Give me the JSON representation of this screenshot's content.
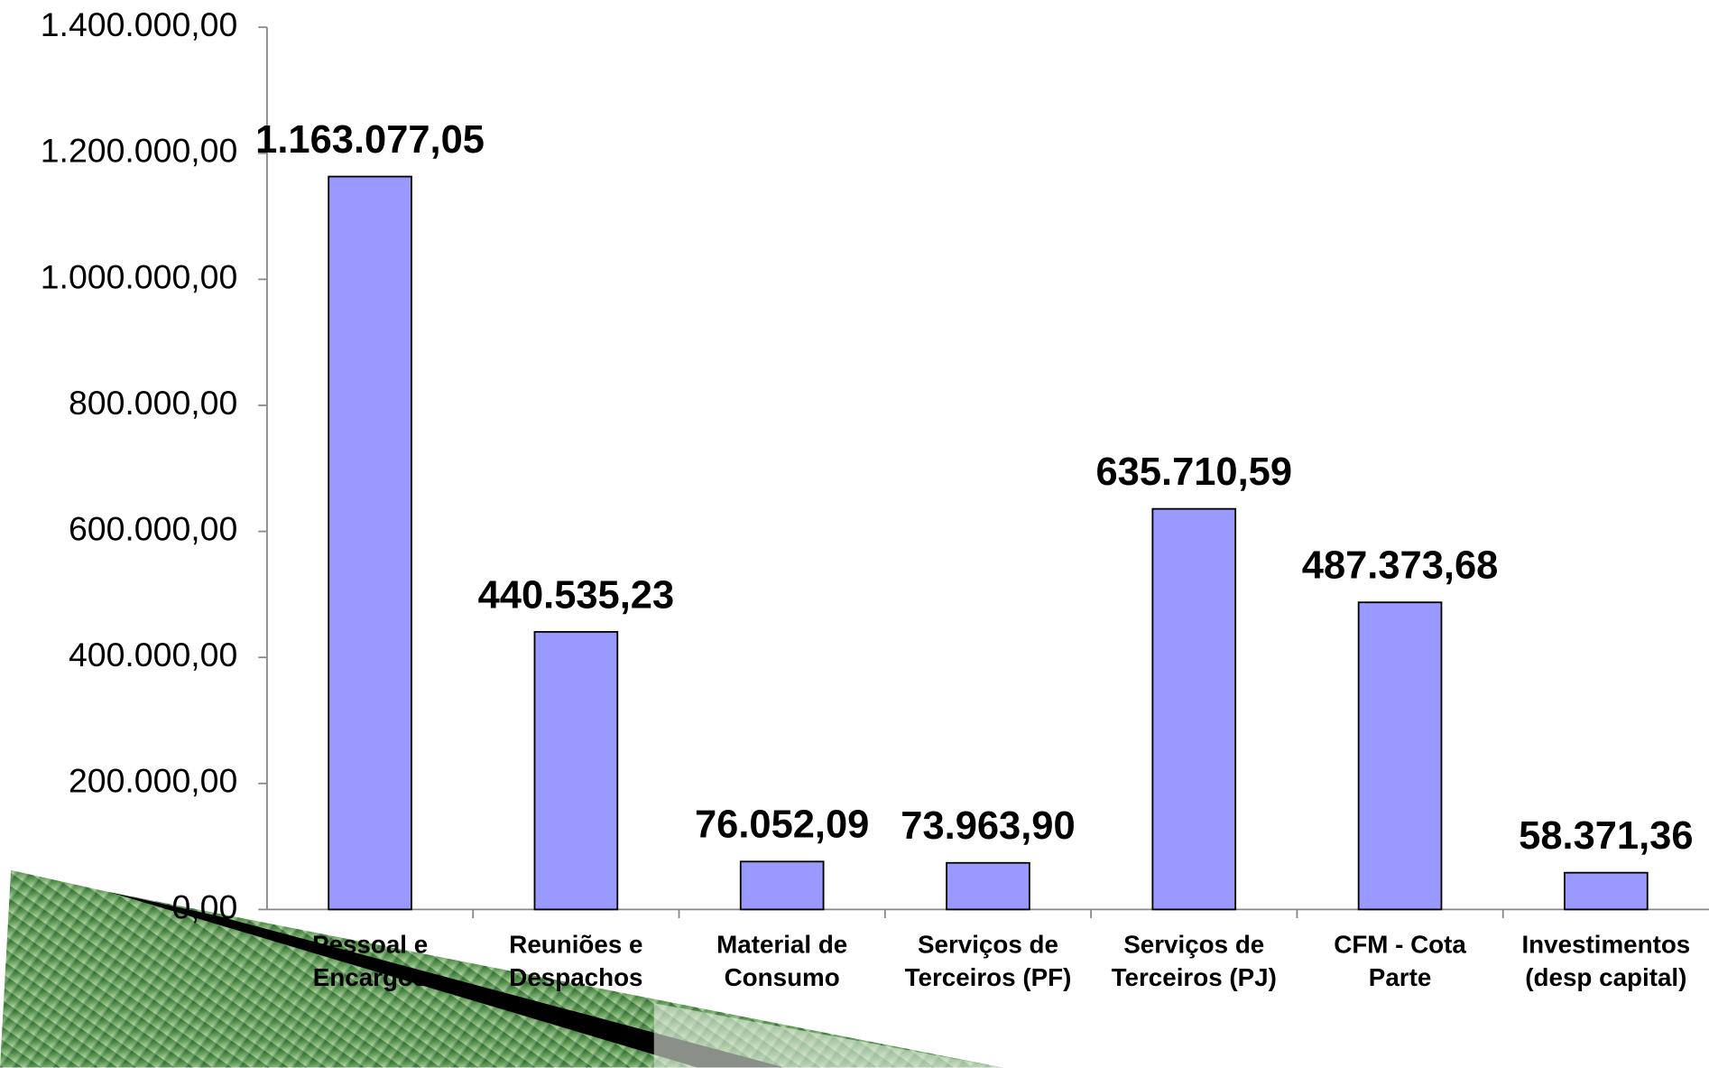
{
  "chart_data": {
    "type": "bar",
    "categories": [
      "Pessoal e\nEncargos",
      "Reuniões e\nDespachos",
      "Material de\nConsumo",
      "Serviços de\nTerceiros (PF)",
      "Serviços de\nTerceiros (PJ)",
      "CFM - Cota\nParte",
      "Investimentos\n(desp capital)"
    ],
    "values": [
      1163077.05,
      440535.23,
      76052.09,
      73963.9,
      635710.59,
      487373.68,
      58371.36
    ],
    "value_labels": [
      "1.163.077,05",
      "440.535,23",
      "76.052,09",
      "73.963,90",
      "635.710,59",
      "487.373,68",
      "58.371,36"
    ],
    "color": "#9999ff",
    "ylim": [
      0,
      1400000
    ],
    "yticks": [
      {
        "value": 0,
        "label": "0,00"
      },
      {
        "value": 200000,
        "label": "200.000,00"
      },
      {
        "value": 400000,
        "label": "400.000,00"
      },
      {
        "value": 600000,
        "label": "600.000,00"
      },
      {
        "value": 800000,
        "label": "800.000,00"
      },
      {
        "value": 1000000,
        "label": "1.000.000,00"
      },
      {
        "value": 1200000,
        "label": "1.200.000,00"
      },
      {
        "value": 1400000,
        "label": "1.400.000,00"
      }
    ]
  }
}
